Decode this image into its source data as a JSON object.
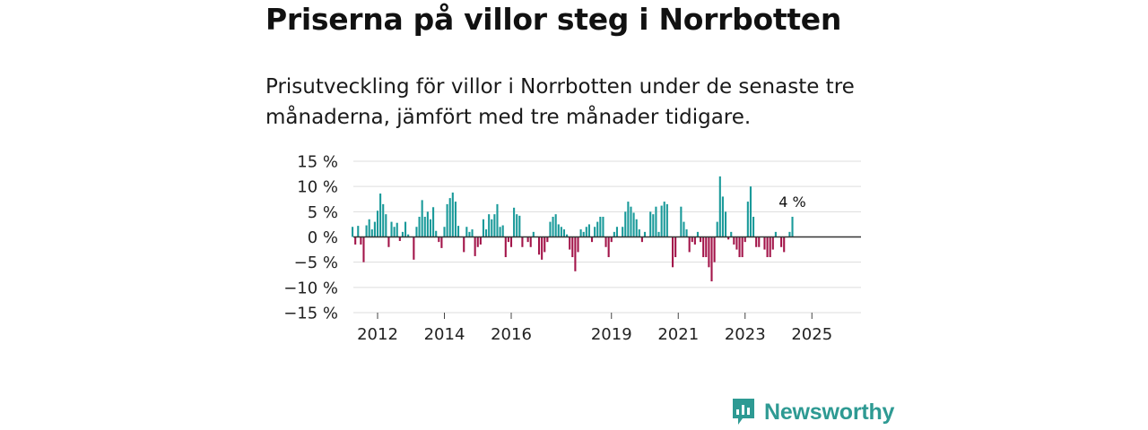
{
  "header": {
    "title": "Priserna på villor steg i Norrbotten",
    "subtitle": "Prisutveckling för villor i Norrbotten under de senaste tre månaderna, jämfört med tre månader tidigare."
  },
  "brand": {
    "name": "Newsworthy"
  },
  "colors": {
    "positive": "#1a9a9a",
    "negative": "#a3154a",
    "grid": "#dddddd",
    "zero": "#333333",
    "brand": "#2e9a93"
  },
  "chart_data": {
    "type": "bar",
    "title": "Priserna på villor steg i Norrbotten",
    "xlabel": "",
    "ylabel": "",
    "unit": "%",
    "ylim": [
      -15,
      15
    ],
    "yticks": [
      15,
      10,
      5,
      0,
      -5,
      -10,
      -15
    ],
    "ytick_labels": [
      "15 %",
      "10 %",
      "5 %",
      "0 %",
      "−5 %",
      "−10 %",
      "−15 %"
    ],
    "xticks": [
      {
        "value": 2012,
        "label": "2012"
      },
      {
        "value": 2014,
        "label": "2014"
      },
      {
        "value": 2016,
        "label": "2016"
      },
      {
        "value": 2019,
        "label": "2019"
      },
      {
        "value": 2021,
        "label": "2021"
      },
      {
        "value": 2023,
        "label": "2023"
      },
      {
        "value": 2025,
        "label": "2025"
      }
    ],
    "start": {
      "year": 2011,
      "month": 4
    },
    "annotation": "4 %",
    "values": [
      2,
      -1.5,
      2.2,
      -1.5,
      -5,
      2.3,
      3.5,
      1.5,
      3,
      5.2,
      8.6,
      6.5,
      4.5,
      -2,
      3,
      2,
      2.8,
      -0.8,
      1,
      3,
      0.5,
      0,
      -4.5,
      2,
      4,
      7.3,
      4,
      5,
      3.5,
      5.9,
      1.2,
      -1,
      -2.2,
      2,
      6.5,
      7.7,
      8.8,
      7,
      2.2,
      0,
      -3,
      2,
      1,
      1.5,
      -3.8,
      -2,
      -1.5,
      3.5,
      1.5,
      4.5,
      3.5,
      4.5,
      6.5,
      2,
      2.3,
      -4,
      -1,
      -2,
      5.8,
      4.5,
      4.2,
      -2,
      0,
      -1,
      -2,
      1,
      0,
      -3.5,
      -4.5,
      -3,
      -1,
      3,
      4,
      4.5,
      2.5,
      2,
      1.5,
      0.5,
      -2.5,
      -4,
      -6.8,
      -3,
      1.5,
      1,
      2,
      2.5,
      -1,
      2,
      3,
      4,
      4,
      -2,
      -4,
      -1,
      1,
      2,
      0,
      2,
      5,
      7,
      6,
      4.8,
      3.5,
      1.5,
      -1,
      1,
      0,
      5,
      4.5,
      6,
      1,
      6.2,
      7,
      6.5,
      0,
      -6,
      -4,
      0,
      6,
      3,
      1.5,
      -3,
      -1,
      -1.5,
      1,
      -1,
      -4,
      -4,
      -6,
      -8.8,
      -5,
      3,
      12,
      8,
      5,
      -0.5,
      1,
      -1.5,
      -2.5,
      -4,
      -4,
      -1,
      7,
      10,
      4,
      -2,
      -2,
      0,
      -2.5,
      -4,
      -4,
      -2.5,
      1,
      0,
      -2,
      -3,
      0,
      1,
      4
    ]
  }
}
